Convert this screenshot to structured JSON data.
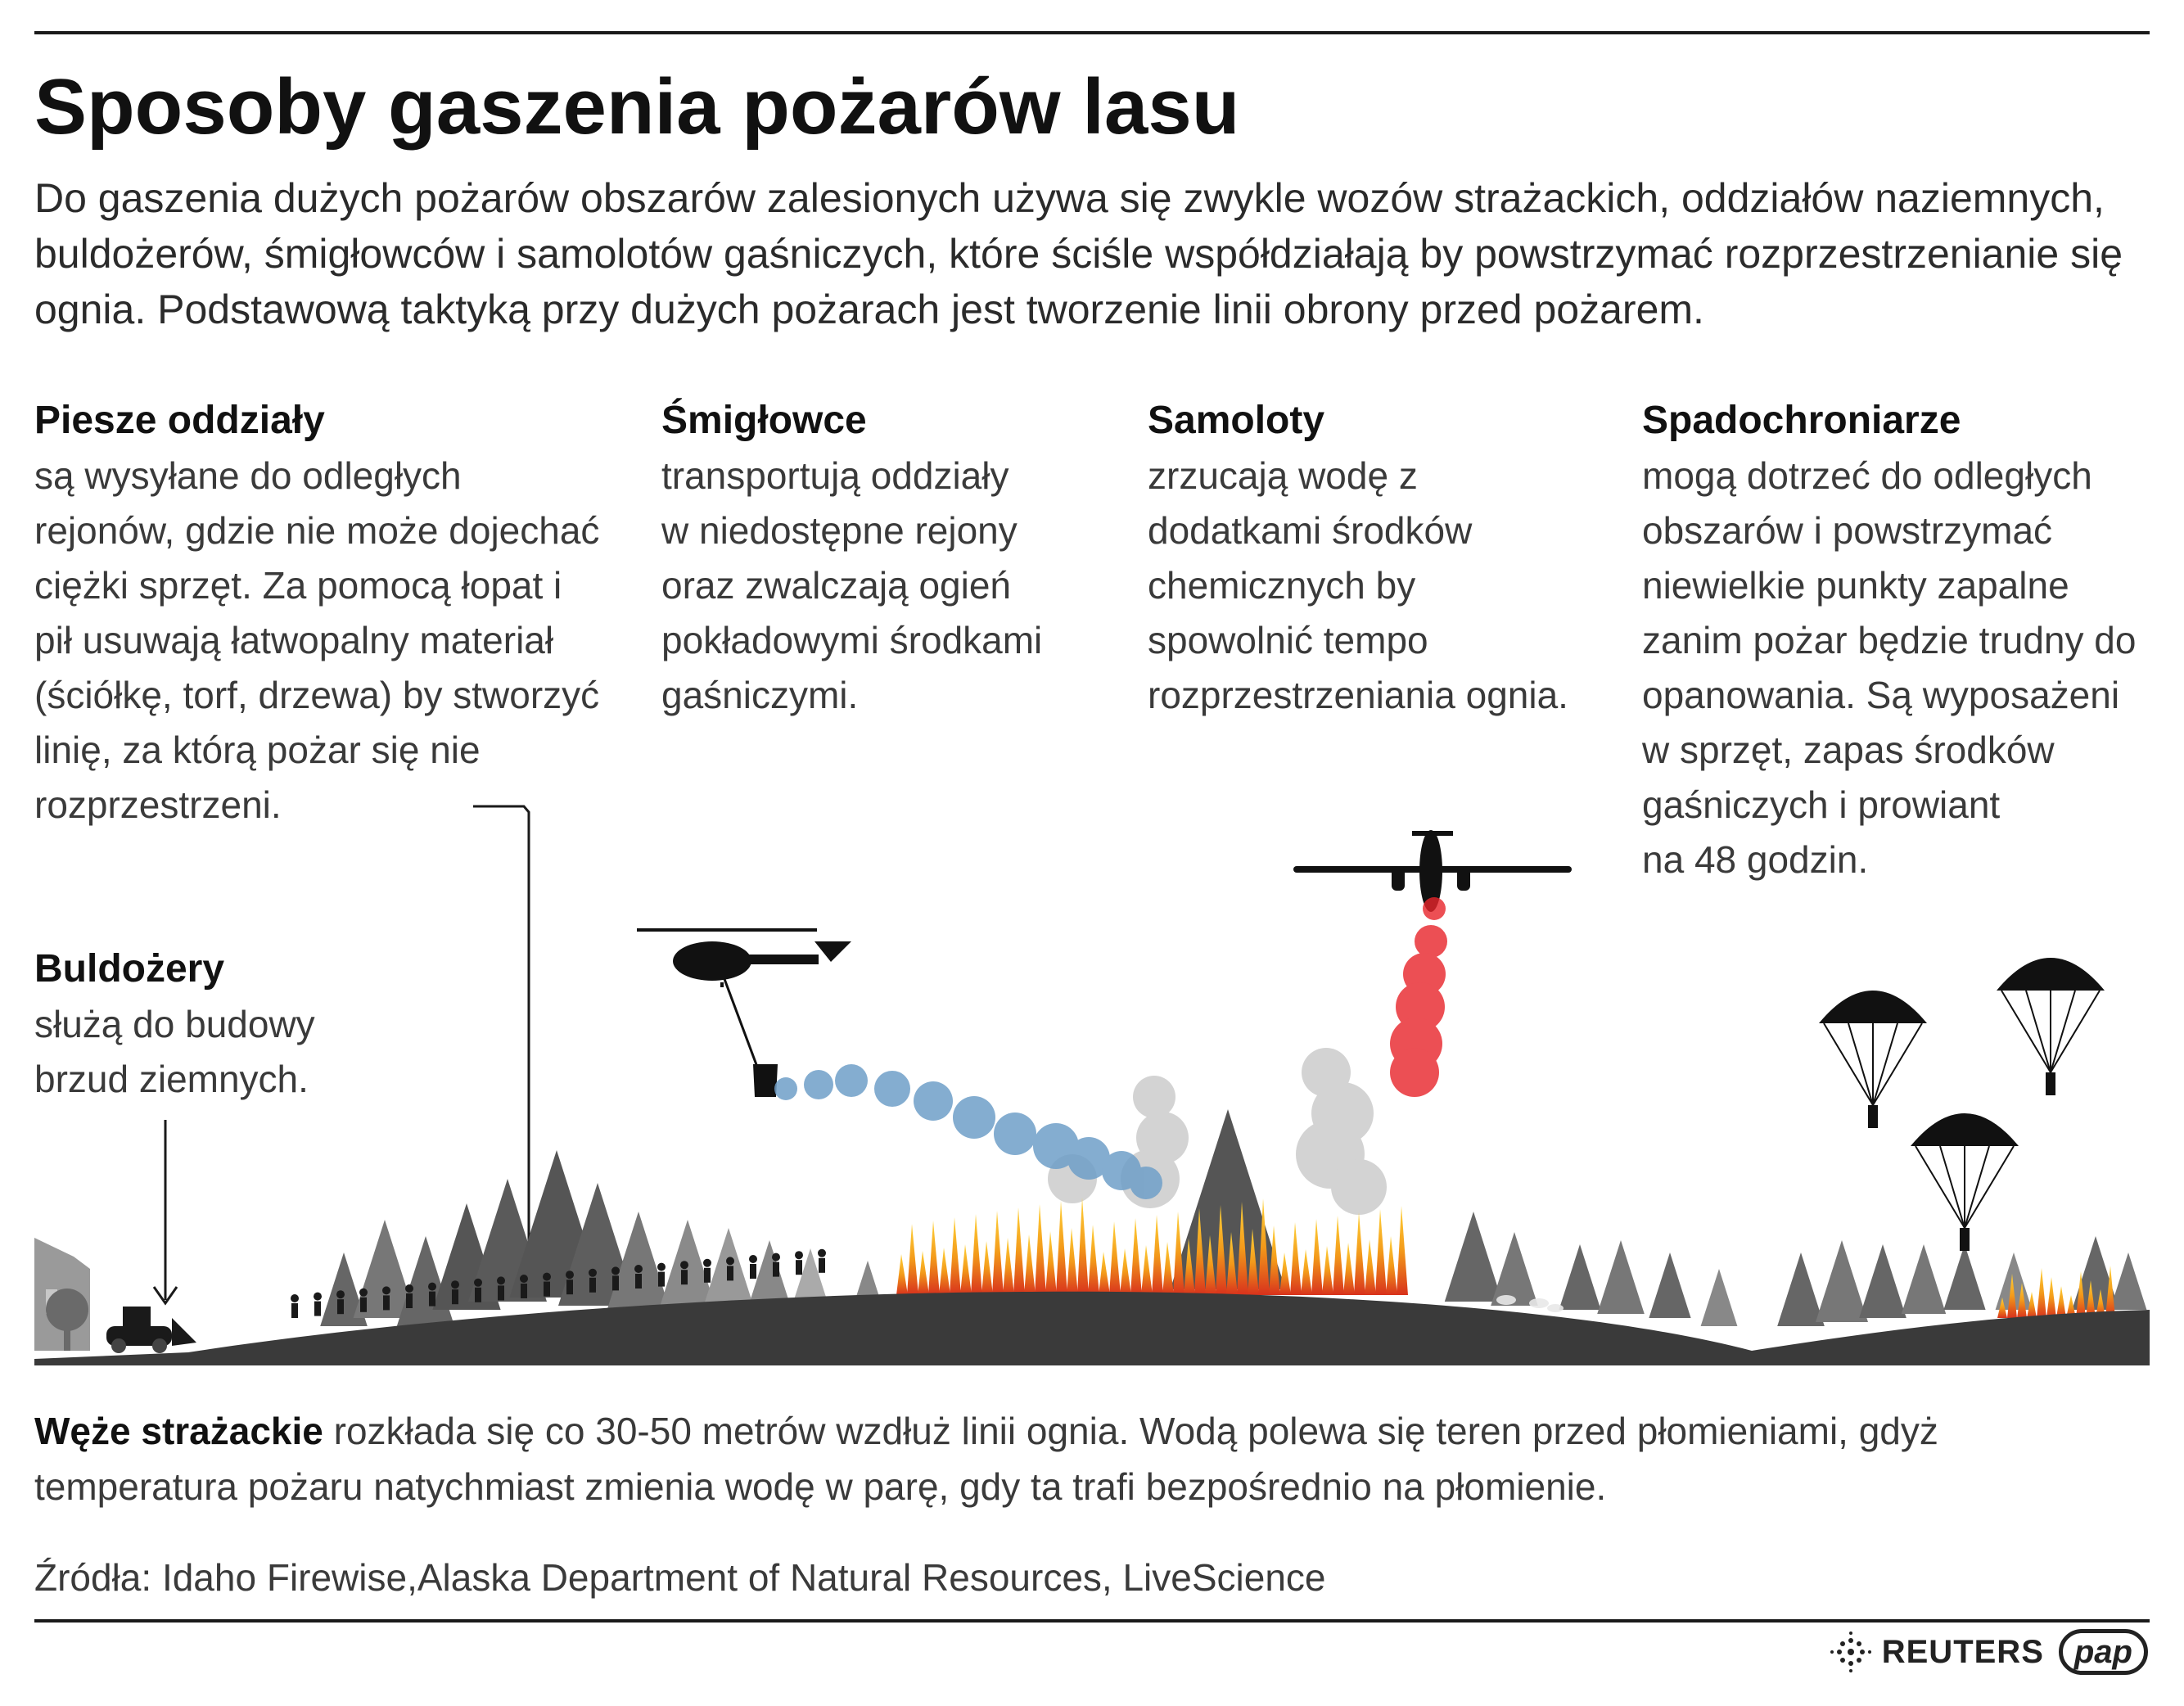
{
  "title": "Sposoby gaszenia pożarów lasu",
  "intro": "Do gaszenia dużych pożarów obszarów zalesionych używa się zwykle wozów strażackich, oddziałów naziemnych, buldożerów, śmigłowców i samolotów gaśniczych, które ściśle współdziałają by powstrzymać rozprzestrzenianie się ognia. Podstawową taktyką przy dużych pożarach jest tworzenie linii obrony przed pożarem.",
  "sections": {
    "piesze": {
      "heading": "Piesze oddziały",
      "body": "są wysyłane do odległych\nrejonów, gdzie nie może dojechać\nciężki sprzęt. Za pomocą łopat i\npił usuwają łatwopalny materiał\n(ściółkę, torf, drzewa) by stworzyć\nlinię, za którą pożar się nie\nrozprzestrzeni."
    },
    "smiglowce": {
      "heading": "Śmigłowce",
      "body": "transportują oddziały\nw niedostępne rejony\noraz zwalczają ogień\npokładowymi środkami\ngaśniczymi."
    },
    "samoloty": {
      "heading": "Samoloty",
      "body": "zrzucają wodę z\ndodatkami środków\nchemicznych by\nspowolnić tempo\nrozprzestrzeniania ognia."
    },
    "spadochroniarze": {
      "heading": "Spadochroniarze",
      "body": "mogą dotrzeć do odległych\nobszarów i powstrzymać\nniewielkie punkty zapalne\nzanim pożar będzie trudny do\nopanowania. Są wyposażeni\nw sprzęt, zapas środków\ngaśniczych i prowiant\nna 48 godzin."
    },
    "buldozery": {
      "heading": "Buldożery",
      "body": "służą do budowy\nbrzud ziemnych."
    }
  },
  "hoses": {
    "bold": "Węże strażackie",
    "text": " rozkłada się co 30-50 metrów wzdłuż linii ognia. Wodą polewa się teren przed płomieniami,  gdyż temperatura pożaru natychmiast zmienia wodę w parę, gdy ta trafi  bezpośrednio na płomienie."
  },
  "sources": "Źródła: Idaho Firewise,Alaska Department of Natural Resources, LiveScience",
  "footer": {
    "agency1": "REUTERS",
    "agency2": "pap"
  },
  "colors": {
    "ground": "#3a3a3a",
    "forest_dark": "#555555",
    "forest_light": "#8a8a8a",
    "water_blue": "#6f9fc8",
    "retardant_red": "#e8242a",
    "fire_orange": "#f39a1a",
    "fire_red": "#d8321c"
  },
  "icons": [
    "helicopter-icon",
    "airplane-icon",
    "parachute-icon",
    "bulldozer-icon",
    "firefighter-icon",
    "deer-icon",
    "fire-icon",
    "reuters-logo-icon"
  ]
}
